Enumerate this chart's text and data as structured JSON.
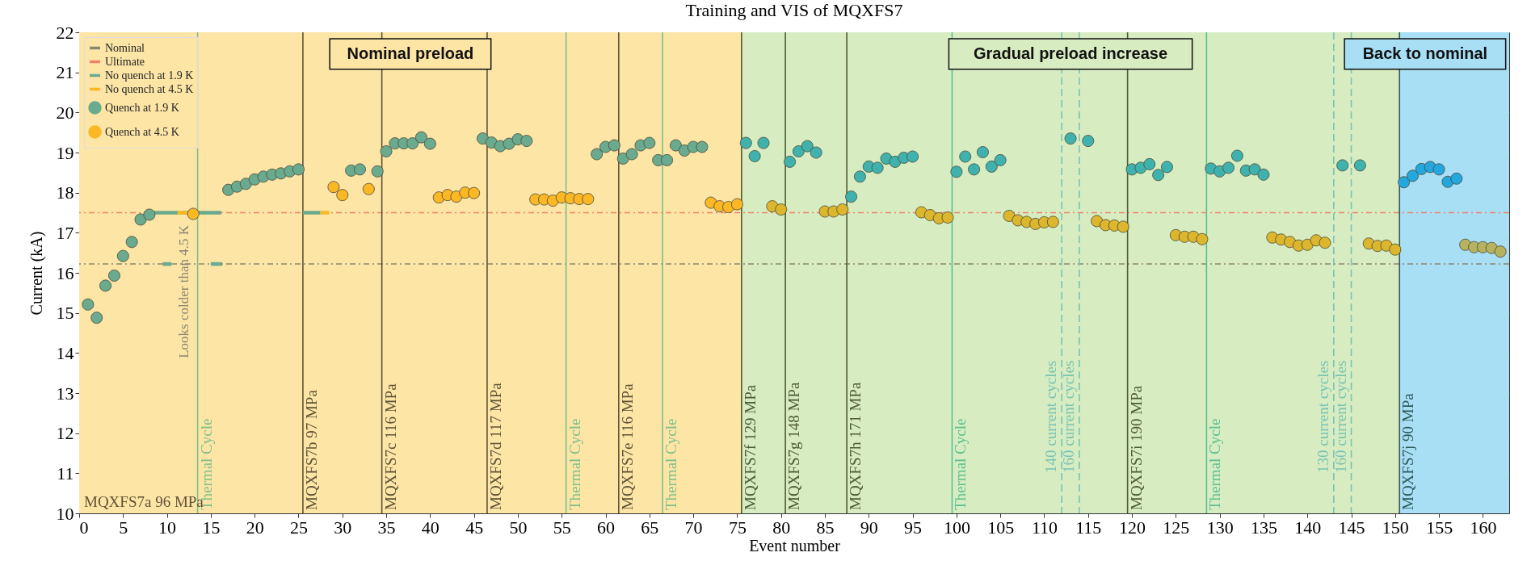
{
  "chart_data": {
    "type": "scatter",
    "title": "Training and VIS of MQXFS7",
    "xlabel": "Event number",
    "ylabel": "Current (kA)",
    "xlim": [
      0,
      163
    ],
    "ylim": [
      10,
      22
    ],
    "xticks": [
      0,
      5,
      10,
      15,
      20,
      25,
      30,
      35,
      40,
      45,
      50,
      55,
      60,
      65,
      70,
      75,
      80,
      85,
      90,
      95,
      100,
      105,
      110,
      115,
      120,
      125,
      130,
      135,
      140,
      145,
      150,
      155,
      160
    ],
    "yticks": [
      10,
      11,
      12,
      13,
      14,
      15,
      16,
      17,
      18,
      19,
      20,
      21,
      22
    ],
    "grid": true,
    "legend": "top left",
    "series": [
      {
        "name": "No quench at 1.9 K",
        "type": "line",
        "marker": "none",
        "color": "#6aaa8e",
        "x": [
          8.5,
          16.2,
          null,
          9.5,
          10.5,
          null,
          15,
          16.3,
          null,
          25.5,
          27.5
        ],
        "values": [
          17.5,
          17.5,
          null,
          16.22,
          16.22,
          null,
          16.22,
          16.22,
          null,
          17.5,
          17.5
        ]
      },
      {
        "name": "No quench at 4.5 K",
        "type": "line",
        "marker": "none",
        "color": "#fbb724",
        "x": [
          11.2,
          12.4,
          null,
          27.5,
          28.5
        ],
        "values": [
          17.5,
          17.5,
          null,
          17.5,
          17.5
        ]
      },
      {
        "name": "Quench at 1.9 K",
        "marker": "circle",
        "color": "#6aaa8e",
        "x": [
          1,
          2,
          3,
          4,
          5,
          6,
          7,
          8,
          17,
          18,
          19,
          20,
          21,
          22,
          23,
          24,
          25,
          31,
          32,
          34,
          35,
          36,
          37,
          38,
          39,
          40,
          46,
          47,
          48,
          49,
          50,
          51,
          59,
          60,
          61,
          62,
          63,
          64,
          65,
          66,
          67,
          68,
          69,
          70,
          71
        ],
        "values": [
          15.21,
          14.88,
          15.68,
          15.93,
          16.42,
          16.77,
          17.33,
          17.45,
          18.07,
          18.15,
          18.22,
          18.33,
          18.4,
          18.45,
          18.48,
          18.53,
          18.58,
          18.55,
          18.58,
          18.53,
          19.03,
          19.23,
          19.23,
          19.23,
          19.38,
          19.22,
          19.35,
          19.25,
          19.16,
          19.22,
          19.33,
          19.29,
          18.96,
          19.14,
          19.18,
          18.85,
          18.96,
          19.18,
          19.24,
          18.81,
          18.81,
          19.18,
          19.05,
          19.14,
          19.14
        ]
      },
      {
        "name": "Quench at 4.5 K",
        "marker": "circle",
        "color": "#fbb724",
        "x": [
          13,
          29,
          30,
          33,
          41,
          42,
          43,
          44,
          45,
          52,
          53,
          54,
          55,
          56,
          57,
          58,
          72,
          73,
          74,
          75
        ],
        "values": [
          17.47,
          18.14,
          17.94,
          18.09,
          17.88,
          17.94,
          17.9,
          18.0,
          17.99,
          17.83,
          17.83,
          17.8,
          17.88,
          17.86,
          17.84,
          17.84,
          17.75,
          17.66,
          17.64,
          17.71
        ]
      },
      {
        "marker": "circle",
        "color": "#3fb2ad",
        "x": [
          76,
          77,
          78,
          81,
          82,
          83,
          84,
          88,
          89,
          90,
          91,
          92,
          93,
          94,
          95,
          100,
          101,
          102,
          103,
          104,
          105,
          113,
          115,
          120,
          121,
          122,
          123,
          124,
          129,
          130,
          131,
          132,
          133,
          134,
          135,
          144,
          146
        ],
        "values": [
          19.24,
          18.91,
          19.24,
          18.77,
          19.03,
          19.16,
          19.0,
          17.9,
          18.4,
          18.65,
          18.62,
          18.85,
          18.77,
          18.87,
          18.9,
          18.52,
          18.9,
          18.58,
          19.01,
          18.65,
          18.81,
          19.35,
          19.29,
          18.58,
          18.62,
          18.71,
          18.44,
          18.64,
          18.6,
          18.53,
          18.62,
          18.92,
          18.55,
          18.58,
          18.45,
          18.68,
          18.68
        ]
      },
      {
        "marker": "circle",
        "color": "#dcb62c",
        "x": [
          79,
          80,
          85,
          86,
          87,
          96,
          97,
          98,
          99,
          106,
          107,
          108,
          109,
          110,
          111,
          116,
          117,
          118,
          119,
          125,
          126,
          127,
          128,
          136,
          137,
          138,
          139,
          140,
          141,
          142,
          147,
          148,
          149,
          150
        ],
        "values": [
          17.66,
          17.58,
          17.53,
          17.53,
          17.58,
          17.51,
          17.44,
          17.36,
          17.38,
          17.42,
          17.31,
          17.27,
          17.22,
          17.26,
          17.27,
          17.29,
          17.19,
          17.18,
          17.15,
          16.94,
          16.9,
          16.9,
          16.84,
          16.88,
          16.83,
          16.77,
          16.68,
          16.7,
          16.81,
          16.75,
          16.73,
          16.67,
          16.68,
          16.58
        ]
      },
      {
        "marker": "circle",
        "color": "#22a7df",
        "x": [
          151,
          152,
          153,
          154,
          155,
          156,
          157
        ],
        "values": [
          18.26,
          18.42,
          18.59,
          18.64,
          18.58,
          18.27,
          18.35
        ]
      },
      {
        "marker": "circle",
        "color": "#b6b25e",
        "x": [
          158,
          159,
          160,
          161,
          162
        ],
        "values": [
          16.7,
          16.64,
          16.64,
          16.62,
          16.53
        ]
      }
    ],
    "ref_lines": [
      {
        "axis": "y",
        "value": 16.22,
        "label": "Nominal",
        "color": "#8a8670",
        "line_style": "dashed"
      },
      {
        "axis": "y",
        "value": 17.5,
        "label": "Ultimate",
        "color": "#f0806a",
        "line_style": "dashed"
      },
      {
        "axis": "x",
        "value": 25.5,
        "label": "MQXFS7b 97 MPa",
        "color": "#5e5236"
      },
      {
        "axis": "x",
        "value": 34.5,
        "label": "MQXFS7c 116 MPa",
        "color": "#5e5236"
      },
      {
        "axis": "x",
        "value": 46.5,
        "label": "MQXFS7d 117 MPa",
        "color": "#5e5236"
      },
      {
        "axis": "x",
        "value": 61.5,
        "label": "MQXFS7e 116 MPa",
        "color": "#5e5236"
      },
      {
        "axis": "x",
        "value": 75.5,
        "label": "MQXFS7f 129 MPa",
        "color": "#4f5a36"
      },
      {
        "axis": "x",
        "value": 80.5,
        "label": "MQXFS7g 148 MPa",
        "color": "#4f5a36"
      },
      {
        "axis": "x",
        "value": 87.5,
        "label": "MQXFS7h 171 MPa",
        "color": "#4f5a36"
      },
      {
        "axis": "x",
        "value": 119.5,
        "label": "MQXFS7i 190 MPa",
        "color": "#4f5a36"
      },
      {
        "axis": "x",
        "value": 150.5,
        "label": "MQXFS7j 90 MPa",
        "color": "#2f5a5a"
      },
      {
        "axis": "x",
        "value": 13.5,
        "label": "Thermal Cycle",
        "color": "#7cc08a"
      },
      {
        "axis": "x",
        "value": 55.5,
        "label": "Thermal Cycle",
        "color": "#7cc08a"
      },
      {
        "axis": "x",
        "value": 66.5,
        "label": "Thermal Cycle",
        "color": "#7cc08a"
      },
      {
        "axis": "x",
        "value": 99.5,
        "label": "Thermal Cycle",
        "color": "#5cc090"
      },
      {
        "axis": "x",
        "value": 128.5,
        "label": "Thermal Cycle",
        "color": "#5cc090"
      },
      {
        "axis": "x",
        "value": 112,
        "label": "140 current cycles",
        "color": "#78c4b4",
        "line_style": "dashed"
      },
      {
        "axis": "x",
        "value": 114,
        "label": "160 current cycles",
        "color": "#78c4b4",
        "line_style": "dashed"
      },
      {
        "axis": "x",
        "value": 143,
        "label": "130 current cycles",
        "color": "#78c4b4",
        "line_style": "dashed"
      },
      {
        "axis": "x",
        "value": 145,
        "label": "160 current cycles",
        "color": "#78c4b4",
        "line_style": "dashed"
      }
    ],
    "bands": [
      {
        "axis": "x",
        "from": 0,
        "to": 75.5,
        "label": "Nominal preload",
        "color": "#fde5a6"
      },
      {
        "axis": "x",
        "from": 75.5,
        "to": 150.5,
        "label": "Gradual preload increase",
        "color": "#d7ecc1"
      },
      {
        "axis": "x",
        "from": 150.5,
        "to": 163,
        "label": "Back to nominal",
        "color": "#a8dff5"
      }
    ],
    "annotations": [
      "MQXFS7a 96 MPa",
      {
        "text": "Looks colder than 4.5 K",
        "x": 13,
        "y": 17.47
      }
    ]
  }
}
